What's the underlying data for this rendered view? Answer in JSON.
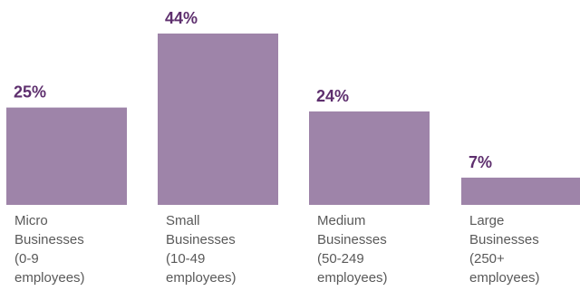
{
  "chart_data": {
    "type": "bar",
    "categories": [
      [
        "Micro",
        "Businesses",
        "(0-9",
        "employees)"
      ],
      [
        "Small",
        "Businesses",
        "(10-49",
        "employees)"
      ],
      [
        "Medium",
        "Businesses",
        "(50-249",
        "employees)"
      ],
      [
        "Large",
        "Businesses",
        "(250+",
        "employees)"
      ]
    ],
    "values": [
      25,
      44,
      24,
      7
    ],
    "value_labels": [
      "25%",
      "44%",
      "24%",
      "7%"
    ],
    "unit": "%",
    "bar_color": "#9e84a9",
    "label_color": "#5e2f6e",
    "category_text_color": "#595959",
    "grid": false,
    "axes_visible": false
  }
}
